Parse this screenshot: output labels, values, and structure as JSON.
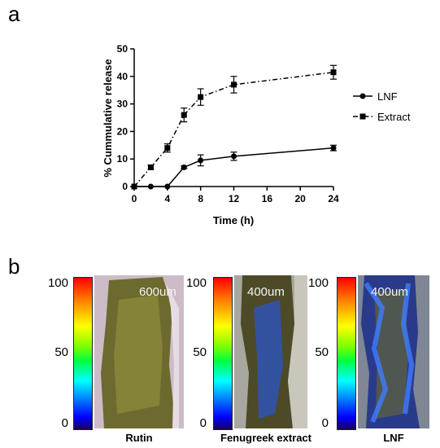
{
  "panels": {
    "a": "a",
    "b": "b"
  },
  "chart_data": {
    "type": "line",
    "xlabel": "Time (h)",
    "ylabel": "% Cummulative release",
    "xlim": [
      0,
      24
    ],
    "ylim": [
      0,
      50
    ],
    "xticks": [
      0,
      4,
      8,
      12,
      16,
      20,
      24
    ],
    "yticks": [
      0,
      10,
      20,
      30,
      40,
      50
    ],
    "legend_position": "right",
    "series": [
      {
        "name": "LNF",
        "marker": "circle",
        "line": "solid",
        "x": [
          0,
          2,
          4,
          6,
          8,
          12,
          24
        ],
        "y": [
          0,
          0,
          0,
          7,
          9.5,
          11,
          14
        ],
        "err": [
          0,
          0,
          0,
          0.5,
          2,
          1.5,
          1
        ]
      },
      {
        "name": "Extract",
        "marker": "square",
        "line": "dash-dot",
        "x": [
          0,
          2,
          4,
          6,
          8,
          12,
          24
        ],
        "y": [
          0,
          7,
          14,
          26,
          32.5,
          37,
          41.5
        ],
        "err": [
          0,
          0.8,
          1.5,
          2.5,
          3,
          3,
          2.5
        ]
      }
    ]
  },
  "panel_b": {
    "colorbar_labels": {
      "top": "100",
      "mid": "50",
      "bottom": "0"
    },
    "images": [
      {
        "caption": "Rutin",
        "scale": "600um"
      },
      {
        "caption": "Fenugreek extract",
        "scale": "400um"
      },
      {
        "caption": "LNF",
        "scale": "400um"
      }
    ]
  }
}
